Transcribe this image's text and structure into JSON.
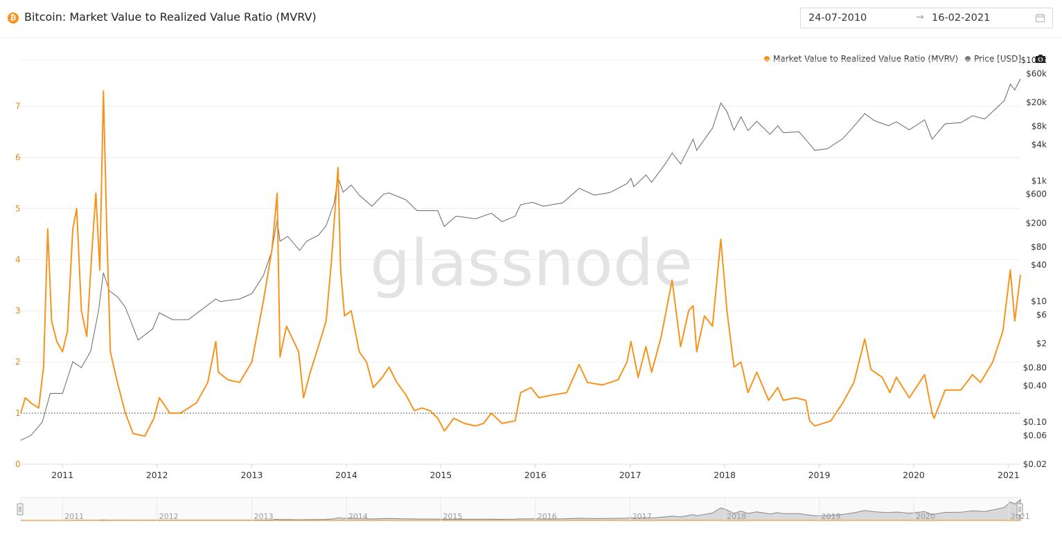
{
  "header": {
    "title": "Bitcoin: Market Value to Realized Value Ratio (MVRV)",
    "date_start": "24-07-2010",
    "date_end": "16-02-2021"
  },
  "watermark": "glassnode",
  "colors": {
    "mvrv": "#f7931a",
    "price": "#777777",
    "left_axis_text": "#e0891a"
  },
  "icons": {
    "coin": "bitcoin-icon",
    "calendar": "calendar-icon",
    "camera": "camera-icon",
    "arrow": "arrow-right-icon"
  },
  "chart_data": {
    "type": "line",
    "title": "Bitcoin: Market Value to Realized Value Ratio (MVRV)",
    "x_range": [
      "2010-07-24",
      "2021-02-16"
    ],
    "x_ticks": [
      "2011",
      "2012",
      "2013",
      "2014",
      "2015",
      "2016",
      "2017",
      "2018",
      "2019",
      "2020",
      "2021"
    ],
    "y_left": {
      "ticks": [
        "0",
        "1",
        "2",
        "3",
        "4",
        "5",
        "6",
        "7"
      ],
      "range": [
        0,
        7.9
      ],
      "reference_line": 1
    },
    "y_right": {
      "scale": "log",
      "range": [
        0.02,
        100000
      ],
      "ticks": [
        {
          "label": "$100k",
          "value": 100000
        },
        {
          "label": "$60k",
          "value": 60000
        },
        {
          "label": "$20k",
          "value": 20000
        },
        {
          "label": "$8k",
          "value": 8000
        },
        {
          "label": "$4k",
          "value": 4000
        },
        {
          "label": "$1k",
          "value": 1000
        },
        {
          "label": "$600",
          "value": 600
        },
        {
          "label": "$200",
          "value": 200
        },
        {
          "label": "$80",
          "value": 80
        },
        {
          "label": "$40",
          "value": 40
        },
        {
          "label": "$10",
          "value": 10
        },
        {
          "label": "$6",
          "value": 6
        },
        {
          "label": "$2",
          "value": 2
        },
        {
          "label": "$0.80",
          "value": 0.8
        },
        {
          "label": "$0.40",
          "value": 0.4
        },
        {
          "label": "$0.10",
          "value": 0.1
        },
        {
          "label": "$0.06",
          "value": 0.06
        },
        {
          "label": "$0.02",
          "value": 0.02
        }
      ]
    },
    "grid": true,
    "legend_position": "top-right",
    "navigator_ticks": [
      "2011",
      "2012",
      "2013",
      "2014",
      "2015",
      "2016",
      "2017",
      "2018",
      "2019",
      "2020",
      "2021"
    ],
    "series": [
      {
        "name": "Market Value to Realized Value Ratio (MVRV)",
        "axis": "left",
        "points": [
          [
            "2010-07-24",
            1.0
          ],
          [
            "2010-08-10",
            1.3
          ],
          [
            "2010-09-01",
            1.2
          ],
          [
            "2010-10-01",
            1.1
          ],
          [
            "2010-10-20",
            1.9
          ],
          [
            "2010-11-05",
            4.6
          ],
          [
            "2010-11-20",
            2.8
          ],
          [
            "2010-12-10",
            2.4
          ],
          [
            "2011-01-01",
            2.2
          ],
          [
            "2011-01-20",
            2.6
          ],
          [
            "2011-02-10",
            4.6
          ],
          [
            "2011-02-25",
            5.0
          ],
          [
            "2011-03-15",
            3.0
          ],
          [
            "2011-04-05",
            2.5
          ],
          [
            "2011-04-25",
            4.2
          ],
          [
            "2011-05-10",
            5.3
          ],
          [
            "2011-05-25",
            3.8
          ],
          [
            "2011-06-08",
            7.3
          ],
          [
            "2011-06-20",
            4.8
          ],
          [
            "2011-07-05",
            2.2
          ],
          [
            "2011-08-01",
            1.6
          ],
          [
            "2011-09-01",
            1.0
          ],
          [
            "2011-10-01",
            0.6
          ],
          [
            "2011-11-15",
            0.55
          ],
          [
            "2011-12-20",
            0.9
          ],
          [
            "2012-01-10",
            1.3
          ],
          [
            "2012-02-20",
            1.0
          ],
          [
            "2012-04-01",
            1.0
          ],
          [
            "2012-06-01",
            1.2
          ],
          [
            "2012-07-15",
            1.6
          ],
          [
            "2012-08-15",
            2.4
          ],
          [
            "2012-08-25",
            1.8
          ],
          [
            "2012-10-01",
            1.65
          ],
          [
            "2012-11-15",
            1.6
          ],
          [
            "2013-01-01",
            2.0
          ],
          [
            "2013-02-15",
            3.2
          ],
          [
            "2013-03-20",
            4.2
          ],
          [
            "2013-04-09",
            5.3
          ],
          [
            "2013-04-20",
            2.1
          ],
          [
            "2013-05-15",
            2.7
          ],
          [
            "2013-07-01",
            2.2
          ],
          [
            "2013-07-20",
            1.3
          ],
          [
            "2013-08-15",
            1.8
          ],
          [
            "2013-09-15",
            2.3
          ],
          [
            "2013-10-15",
            2.8
          ],
          [
            "2013-11-05",
            4.0
          ],
          [
            "2013-11-30",
            5.8
          ],
          [
            "2013-12-10",
            3.8
          ],
          [
            "2013-12-25",
            2.9
          ],
          [
            "2014-01-20",
            3.0
          ],
          [
            "2014-02-20",
            2.2
          ],
          [
            "2014-03-20",
            2.0
          ],
          [
            "2014-04-15",
            1.5
          ],
          [
            "2014-05-20",
            1.7
          ],
          [
            "2014-06-15",
            1.9
          ],
          [
            "2014-07-15",
            1.6
          ],
          [
            "2014-08-20",
            1.35
          ],
          [
            "2014-09-20",
            1.05
          ],
          [
            "2014-10-20",
            1.1
          ],
          [
            "2014-11-20",
            1.05
          ],
          [
            "2014-12-20",
            0.9
          ],
          [
            "2015-01-15",
            0.65
          ],
          [
            "2015-02-20",
            0.9
          ],
          [
            "2015-04-01",
            0.8
          ],
          [
            "2015-05-15",
            0.75
          ],
          [
            "2015-06-15",
            0.8
          ],
          [
            "2015-07-15",
            1.0
          ],
          [
            "2015-08-25",
            0.8
          ],
          [
            "2015-10-15",
            0.85
          ],
          [
            "2015-11-05",
            1.4
          ],
          [
            "2015-12-15",
            1.5
          ],
          [
            "2016-01-15",
            1.3
          ],
          [
            "2016-03-01",
            1.35
          ],
          [
            "2016-05-01",
            1.4
          ],
          [
            "2016-06-18",
            1.95
          ],
          [
            "2016-07-20",
            1.6
          ],
          [
            "2016-09-15",
            1.55
          ],
          [
            "2016-11-15",
            1.65
          ],
          [
            "2016-12-20",
            2.0
          ],
          [
            "2017-01-04",
            2.4
          ],
          [
            "2017-02-01",
            1.7
          ],
          [
            "2017-03-03",
            2.3
          ],
          [
            "2017-03-25",
            1.8
          ],
          [
            "2017-05-01",
            2.5
          ],
          [
            "2017-06-12",
            3.6
          ],
          [
            "2017-07-15",
            2.3
          ],
          [
            "2017-08-15",
            3.0
          ],
          [
            "2017-09-01",
            3.1
          ],
          [
            "2017-09-15",
            2.2
          ],
          [
            "2017-10-15",
            2.9
          ],
          [
            "2017-11-15",
            2.7
          ],
          [
            "2017-12-17",
            4.4
          ],
          [
            "2018-01-10",
            3.0
          ],
          [
            "2018-02-06",
            1.9
          ],
          [
            "2018-03-05",
            2.0
          ],
          [
            "2018-04-01",
            1.4
          ],
          [
            "2018-05-05",
            1.8
          ],
          [
            "2018-06-20",
            1.25
          ],
          [
            "2018-07-25",
            1.5
          ],
          [
            "2018-08-15",
            1.25
          ],
          [
            "2018-10-01",
            1.3
          ],
          [
            "2018-11-10",
            1.25
          ],
          [
            "2018-11-25",
            0.85
          ],
          [
            "2018-12-15",
            0.75
          ],
          [
            "2019-01-15",
            0.8
          ],
          [
            "2019-02-15",
            0.85
          ],
          [
            "2019-04-02",
            1.2
          ],
          [
            "2019-05-15",
            1.6
          ],
          [
            "2019-06-26",
            2.45
          ],
          [
            "2019-07-20",
            1.85
          ],
          [
            "2019-09-01",
            1.7
          ],
          [
            "2019-10-01",
            1.4
          ],
          [
            "2019-10-26",
            1.7
          ],
          [
            "2019-12-15",
            1.3
          ],
          [
            "2020-02-12",
            1.75
          ],
          [
            "2020-03-12",
            1.0
          ],
          [
            "2020-03-20",
            0.9
          ],
          [
            "2020-05-01",
            1.45
          ],
          [
            "2020-07-01",
            1.45
          ],
          [
            "2020-08-15",
            1.75
          ],
          [
            "2020-09-15",
            1.6
          ],
          [
            "2020-11-01",
            2.0
          ],
          [
            "2020-12-10",
            2.6
          ],
          [
            "2021-01-08",
            3.8
          ],
          [
            "2021-01-25",
            2.8
          ],
          [
            "2021-02-16",
            3.7
          ]
        ]
      },
      {
        "name": "Price [USD]",
        "axis": "right",
        "points": [
          [
            "2010-07-24",
            0.05
          ],
          [
            "2010-09-01",
            0.06
          ],
          [
            "2010-10-15",
            0.1
          ],
          [
            "2010-11-15",
            0.3
          ],
          [
            "2011-01-01",
            0.3
          ],
          [
            "2011-02-10",
            1.0
          ],
          [
            "2011-03-15",
            0.8
          ],
          [
            "2011-04-20",
            1.5
          ],
          [
            "2011-05-20",
            7.0
          ],
          [
            "2011-06-08",
            30
          ],
          [
            "2011-07-01",
            15
          ],
          [
            "2011-08-01",
            12
          ],
          [
            "2011-09-01",
            8
          ],
          [
            "2011-10-20",
            2.3
          ],
          [
            "2011-12-15",
            3.5
          ],
          [
            "2012-01-10",
            6.5
          ],
          [
            "2012-03-01",
            5
          ],
          [
            "2012-05-01",
            5
          ],
          [
            "2012-08-15",
            11
          ],
          [
            "2012-09-01",
            10
          ],
          [
            "2012-11-15",
            11
          ],
          [
            "2013-01-01",
            13.5
          ],
          [
            "2013-02-15",
            27
          ],
          [
            "2013-03-20",
            70
          ],
          [
            "2013-04-09",
            230
          ],
          [
            "2013-04-20",
            100
          ],
          [
            "2013-05-20",
            120
          ],
          [
            "2013-07-05",
            70
          ],
          [
            "2013-08-01",
            100
          ],
          [
            "2013-09-15",
            125
          ],
          [
            "2013-10-15",
            180
          ],
          [
            "2013-11-15",
            430
          ],
          [
            "2013-11-30",
            1150
          ],
          [
            "2013-12-20",
            650
          ],
          [
            "2014-01-20",
            850
          ],
          [
            "2014-02-20",
            580
          ],
          [
            "2014-04-10",
            380
          ],
          [
            "2014-05-25",
            600
          ],
          [
            "2014-06-15",
            630
          ],
          [
            "2014-08-20",
            480
          ],
          [
            "2014-10-01",
            320
          ],
          [
            "2014-12-20",
            320
          ],
          [
            "2015-01-14",
            175
          ],
          [
            "2015-03-01",
            260
          ],
          [
            "2015-05-15",
            235
          ],
          [
            "2015-07-15",
            290
          ],
          [
            "2015-08-25",
            210
          ],
          [
            "2015-10-15",
            260
          ],
          [
            "2015-11-05",
            400
          ],
          [
            "2015-12-20",
            440
          ],
          [
            "2016-02-01",
            380
          ],
          [
            "2016-04-15",
            430
          ],
          [
            "2016-06-18",
            750
          ],
          [
            "2016-08-15",
            580
          ],
          [
            "2016-10-15",
            640
          ],
          [
            "2016-12-20",
            900
          ],
          [
            "2017-01-04",
            1100
          ],
          [
            "2017-01-15",
            800
          ],
          [
            "2017-03-03",
            1250
          ],
          [
            "2017-03-25",
            950
          ],
          [
            "2017-05-20",
            2000
          ],
          [
            "2017-06-12",
            2900
          ],
          [
            "2017-07-15",
            1900
          ],
          [
            "2017-09-01",
            4900
          ],
          [
            "2017-09-15",
            3200
          ],
          [
            "2017-11-15",
            7500
          ],
          [
            "2017-12-17",
            19500
          ],
          [
            "2018-01-10",
            14000
          ],
          [
            "2018-02-06",
            6900
          ],
          [
            "2018-03-05",
            11500
          ],
          [
            "2018-04-01",
            6800
          ],
          [
            "2018-05-05",
            9700
          ],
          [
            "2018-06-25",
            5900
          ],
          [
            "2018-07-25",
            8200
          ],
          [
            "2018-08-15",
            6300
          ],
          [
            "2018-10-15",
            6500
          ],
          [
            "2018-11-20",
            4300
          ],
          [
            "2018-12-15",
            3200
          ],
          [
            "2019-02-01",
            3400
          ],
          [
            "2019-04-02",
            5000
          ],
          [
            "2019-05-15",
            8000
          ],
          [
            "2019-06-26",
            13000
          ],
          [
            "2019-08-01",
            10000
          ],
          [
            "2019-09-25",
            8200
          ],
          [
            "2019-10-26",
            9500
          ],
          [
            "2019-12-15",
            7000
          ],
          [
            "2020-02-12",
            10300
          ],
          [
            "2020-03-12",
            4900
          ],
          [
            "2020-05-01",
            8800
          ],
          [
            "2020-07-01",
            9200
          ],
          [
            "2020-08-15",
            12000
          ],
          [
            "2020-10-01",
            10600
          ],
          [
            "2020-11-15",
            16000
          ],
          [
            "2020-12-16",
            21500
          ],
          [
            "2021-01-08",
            40000
          ],
          [
            "2021-01-25",
            32000
          ],
          [
            "2021-02-16",
            49000
          ]
        ]
      }
    ]
  }
}
